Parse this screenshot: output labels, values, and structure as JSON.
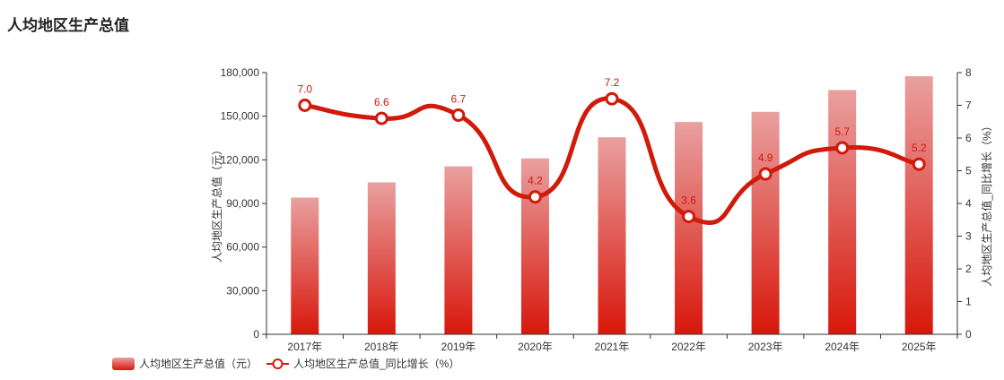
{
  "title": "人均地区生产总值",
  "chart_data": {
    "type": "bar",
    "categories": [
      "2017年",
      "2018年",
      "2019年",
      "2020年",
      "2021年",
      "2022年",
      "2023年",
      "2024年",
      "2025年"
    ],
    "series": [
      {
        "name": "人均地区生产总值（元）",
        "type": "bar",
        "axis": "left",
        "values": [
          94000,
          104500,
          115500,
          121000,
          135500,
          146000,
          153000,
          168000,
          177500
        ]
      },
      {
        "name": "人均地区生产总值_同比增长（%）",
        "type": "line",
        "axis": "right",
        "values": [
          7.0,
          6.6,
          6.7,
          4.2,
          7.2,
          3.6,
          4.9,
          5.7,
          5.2
        ],
        "labels": [
          "7.0",
          "6.6",
          "6.7",
          "4.2",
          "7.2",
          "3.6",
          "4.9",
          "5.7",
          "5.2"
        ]
      }
    ],
    "y_left": {
      "label": "人均地区生产总值（元）",
      "min": 0,
      "max": 180000,
      "ticks": [
        "0",
        "30,000",
        "60,000",
        "90,000",
        "120,000",
        "150,000",
        "180,000"
      ]
    },
    "y_right": {
      "label": "人均地区生产总值_同比增长（%）",
      "min": 0,
      "max": 8,
      "ticks": [
        "0",
        "1",
        "2",
        "3",
        "4",
        "5",
        "6",
        "7",
        "8"
      ]
    },
    "legend_position": "bottom-left",
    "colors": {
      "bar_top": "#e9a0a0",
      "bar_bottom": "#d8170b",
      "line": "#d01a0a",
      "axis": "#333333",
      "label": "#d01a0a"
    }
  }
}
